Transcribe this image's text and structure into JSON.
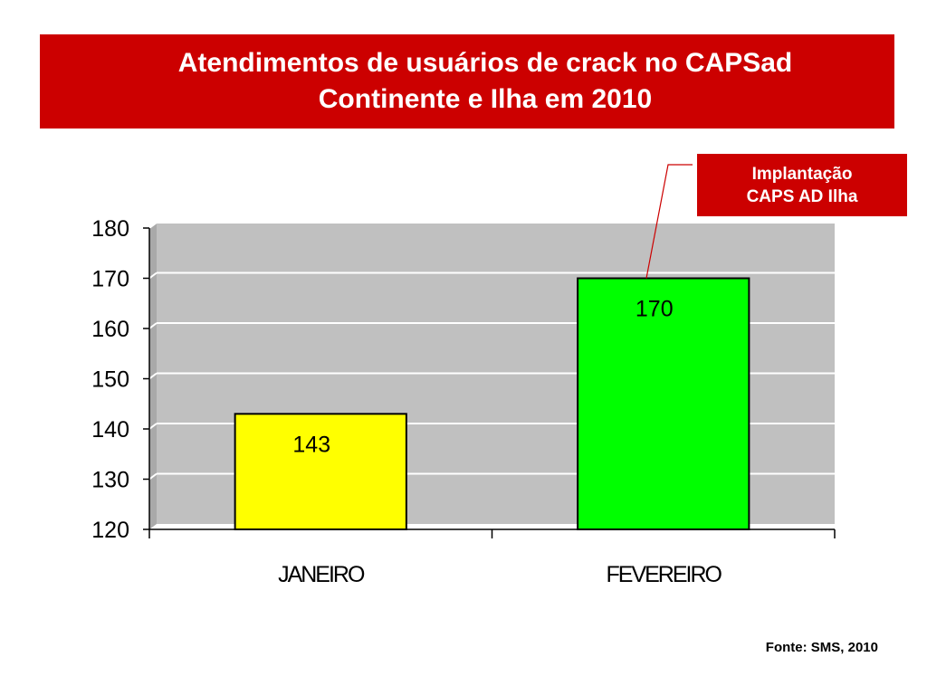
{
  "header": {
    "title": "Atendimentos de usuários de crack no CAPSad\nContinente e Ilha em 2010"
  },
  "annotation": {
    "line1": "Implantação",
    "line2": "CAPS AD Ilha"
  },
  "footer": {
    "source": "Fonte: SMS, 2010"
  },
  "chart_data": {
    "type": "bar",
    "categories": [
      "JANEIRO",
      "FEVEREIRO"
    ],
    "values": [
      143,
      170
    ],
    "data_labels": [
      "143",
      "170"
    ],
    "bar_colors": [
      "#ffff00",
      "#00ff00"
    ],
    "plot_background": "#c0c0c0",
    "ylim": [
      120,
      180
    ],
    "yticks": [
      120,
      130,
      140,
      150,
      160,
      170,
      180
    ],
    "grid": true,
    "annotation_color": "#cc0000"
  }
}
